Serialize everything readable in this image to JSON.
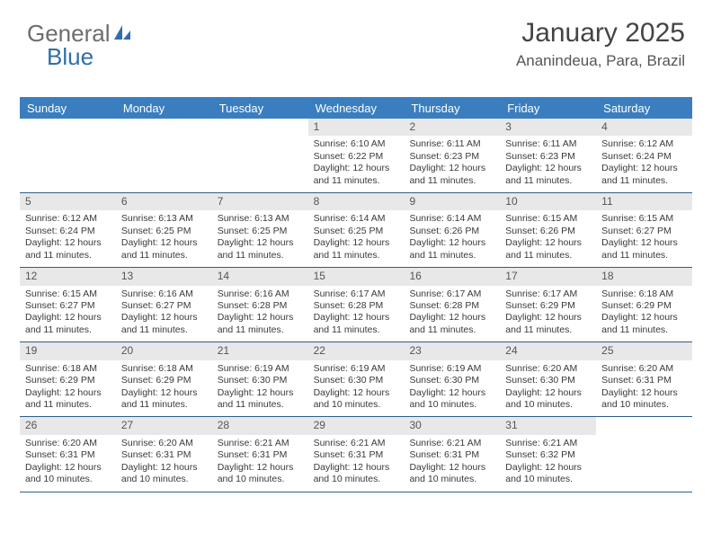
{
  "brand": {
    "part1": "General",
    "part2": "Blue"
  },
  "header": {
    "title": "January 2025",
    "location": "Ananindeua, Para, Brazil"
  },
  "colors": {
    "header_bg": "#3a7ebf",
    "header_text": "#ffffff",
    "daynum_bg": "#e8e8e8",
    "row_border": "#2f5e8a",
    "brand_blue": "#2f6fa8",
    "brand_gray": "#6d6d6d"
  },
  "weekdays": [
    "Sunday",
    "Monday",
    "Tuesday",
    "Wednesday",
    "Thursday",
    "Friday",
    "Saturday"
  ],
  "weeks": [
    [
      {
        "day": "",
        "sunrise": "",
        "sunset": "",
        "daylight": ""
      },
      {
        "day": "",
        "sunrise": "",
        "sunset": "",
        "daylight": ""
      },
      {
        "day": "",
        "sunrise": "",
        "sunset": "",
        "daylight": ""
      },
      {
        "day": "1",
        "sunrise": "Sunrise: 6:10 AM",
        "sunset": "Sunset: 6:22 PM",
        "daylight": "Daylight: 12 hours and 11 minutes."
      },
      {
        "day": "2",
        "sunrise": "Sunrise: 6:11 AM",
        "sunset": "Sunset: 6:23 PM",
        "daylight": "Daylight: 12 hours and 11 minutes."
      },
      {
        "day": "3",
        "sunrise": "Sunrise: 6:11 AM",
        "sunset": "Sunset: 6:23 PM",
        "daylight": "Daylight: 12 hours and 11 minutes."
      },
      {
        "day": "4",
        "sunrise": "Sunrise: 6:12 AM",
        "sunset": "Sunset: 6:24 PM",
        "daylight": "Daylight: 12 hours and 11 minutes."
      }
    ],
    [
      {
        "day": "5",
        "sunrise": "Sunrise: 6:12 AM",
        "sunset": "Sunset: 6:24 PM",
        "daylight": "Daylight: 12 hours and 11 minutes."
      },
      {
        "day": "6",
        "sunrise": "Sunrise: 6:13 AM",
        "sunset": "Sunset: 6:25 PM",
        "daylight": "Daylight: 12 hours and 11 minutes."
      },
      {
        "day": "7",
        "sunrise": "Sunrise: 6:13 AM",
        "sunset": "Sunset: 6:25 PM",
        "daylight": "Daylight: 12 hours and 11 minutes."
      },
      {
        "day": "8",
        "sunrise": "Sunrise: 6:14 AM",
        "sunset": "Sunset: 6:25 PM",
        "daylight": "Daylight: 12 hours and 11 minutes."
      },
      {
        "day": "9",
        "sunrise": "Sunrise: 6:14 AM",
        "sunset": "Sunset: 6:26 PM",
        "daylight": "Daylight: 12 hours and 11 minutes."
      },
      {
        "day": "10",
        "sunrise": "Sunrise: 6:15 AM",
        "sunset": "Sunset: 6:26 PM",
        "daylight": "Daylight: 12 hours and 11 minutes."
      },
      {
        "day": "11",
        "sunrise": "Sunrise: 6:15 AM",
        "sunset": "Sunset: 6:27 PM",
        "daylight": "Daylight: 12 hours and 11 minutes."
      }
    ],
    [
      {
        "day": "12",
        "sunrise": "Sunrise: 6:15 AM",
        "sunset": "Sunset: 6:27 PM",
        "daylight": "Daylight: 12 hours and 11 minutes."
      },
      {
        "day": "13",
        "sunrise": "Sunrise: 6:16 AM",
        "sunset": "Sunset: 6:27 PM",
        "daylight": "Daylight: 12 hours and 11 minutes."
      },
      {
        "day": "14",
        "sunrise": "Sunrise: 6:16 AM",
        "sunset": "Sunset: 6:28 PM",
        "daylight": "Daylight: 12 hours and 11 minutes."
      },
      {
        "day": "15",
        "sunrise": "Sunrise: 6:17 AM",
        "sunset": "Sunset: 6:28 PM",
        "daylight": "Daylight: 12 hours and 11 minutes."
      },
      {
        "day": "16",
        "sunrise": "Sunrise: 6:17 AM",
        "sunset": "Sunset: 6:28 PM",
        "daylight": "Daylight: 12 hours and 11 minutes."
      },
      {
        "day": "17",
        "sunrise": "Sunrise: 6:17 AM",
        "sunset": "Sunset: 6:29 PM",
        "daylight": "Daylight: 12 hours and 11 minutes."
      },
      {
        "day": "18",
        "sunrise": "Sunrise: 6:18 AM",
        "sunset": "Sunset: 6:29 PM",
        "daylight": "Daylight: 12 hours and 11 minutes."
      }
    ],
    [
      {
        "day": "19",
        "sunrise": "Sunrise: 6:18 AM",
        "sunset": "Sunset: 6:29 PM",
        "daylight": "Daylight: 12 hours and 11 minutes."
      },
      {
        "day": "20",
        "sunrise": "Sunrise: 6:18 AM",
        "sunset": "Sunset: 6:29 PM",
        "daylight": "Daylight: 12 hours and 11 minutes."
      },
      {
        "day": "21",
        "sunrise": "Sunrise: 6:19 AM",
        "sunset": "Sunset: 6:30 PM",
        "daylight": "Daylight: 12 hours and 11 minutes."
      },
      {
        "day": "22",
        "sunrise": "Sunrise: 6:19 AM",
        "sunset": "Sunset: 6:30 PM",
        "daylight": "Daylight: 12 hours and 10 minutes."
      },
      {
        "day": "23",
        "sunrise": "Sunrise: 6:19 AM",
        "sunset": "Sunset: 6:30 PM",
        "daylight": "Daylight: 12 hours and 10 minutes."
      },
      {
        "day": "24",
        "sunrise": "Sunrise: 6:20 AM",
        "sunset": "Sunset: 6:30 PM",
        "daylight": "Daylight: 12 hours and 10 minutes."
      },
      {
        "day": "25",
        "sunrise": "Sunrise: 6:20 AM",
        "sunset": "Sunset: 6:31 PM",
        "daylight": "Daylight: 12 hours and 10 minutes."
      }
    ],
    [
      {
        "day": "26",
        "sunrise": "Sunrise: 6:20 AM",
        "sunset": "Sunset: 6:31 PM",
        "daylight": "Daylight: 12 hours and 10 minutes."
      },
      {
        "day": "27",
        "sunrise": "Sunrise: 6:20 AM",
        "sunset": "Sunset: 6:31 PM",
        "daylight": "Daylight: 12 hours and 10 minutes."
      },
      {
        "day": "28",
        "sunrise": "Sunrise: 6:21 AM",
        "sunset": "Sunset: 6:31 PM",
        "daylight": "Daylight: 12 hours and 10 minutes."
      },
      {
        "day": "29",
        "sunrise": "Sunrise: 6:21 AM",
        "sunset": "Sunset: 6:31 PM",
        "daylight": "Daylight: 12 hours and 10 minutes."
      },
      {
        "day": "30",
        "sunrise": "Sunrise: 6:21 AM",
        "sunset": "Sunset: 6:31 PM",
        "daylight": "Daylight: 12 hours and 10 minutes."
      },
      {
        "day": "31",
        "sunrise": "Sunrise: 6:21 AM",
        "sunset": "Sunset: 6:32 PM",
        "daylight": "Daylight: 12 hours and 10 minutes."
      },
      {
        "day": "",
        "sunrise": "",
        "sunset": "",
        "daylight": ""
      }
    ]
  ]
}
